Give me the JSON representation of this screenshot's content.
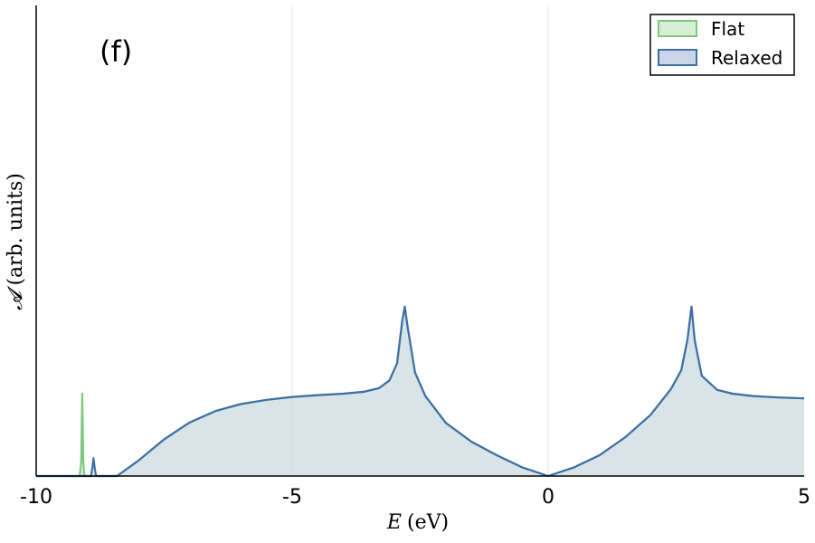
{
  "chart_data": {
    "type": "area",
    "panel_label": "(f)",
    "xlabel_symbol": "E",
    "xlabel_unit": "(eV)",
    "ylabel_symbol": "𝓐",
    "ylabel_unit": "(arb. units)",
    "xlim": [
      -10,
      5
    ],
    "ylim": [
      0,
      1
    ],
    "x_ticks": [
      -10,
      -5,
      0,
      5
    ],
    "x_tick_labels": [
      "-10",
      "-5",
      "0",
      "5"
    ],
    "grid": "vertical lines at x ticks",
    "legend_position": "top-right",
    "series": [
      {
        "name": "Flat",
        "line_color": "#7ec87e",
        "fill_color": "#d7efd7",
        "points": [
          [
            -10,
            0
          ],
          [
            -9.15,
            0
          ],
          [
            -9.12,
            0.03
          ],
          [
            -9.1,
            0.175
          ],
          [
            -9.08,
            0.03
          ],
          [
            -9.06,
            0
          ],
          [
            -8.42,
            0
          ],
          [
            -8.0,
            0.033
          ],
          [
            -7.5,
            0.078
          ],
          [
            -7.0,
            0.114
          ],
          [
            -6.5,
            0.138
          ],
          [
            -6.0,
            0.153
          ],
          [
            -5.5,
            0.162
          ],
          [
            -5.0,
            0.168
          ],
          [
            -4.5,
            0.172
          ],
          [
            -4.0,
            0.175
          ],
          [
            -3.6,
            0.179
          ],
          [
            -3.3,
            0.187
          ],
          [
            -3.1,
            0.203
          ],
          [
            -2.95,
            0.24
          ],
          [
            -2.85,
            0.33
          ],
          [
            -2.8,
            0.36
          ],
          [
            -2.75,
            0.32
          ],
          [
            -2.6,
            0.22
          ],
          [
            -2.4,
            0.17
          ],
          [
            -2.0,
            0.113
          ],
          [
            -1.5,
            0.073
          ],
          [
            -1.0,
            0.044
          ],
          [
            -0.5,
            0.018
          ],
          [
            0,
            0
          ],
          [
            0.5,
            0.018
          ],
          [
            1.0,
            0.044
          ],
          [
            1.5,
            0.082
          ],
          [
            2.0,
            0.13
          ],
          [
            2.4,
            0.185
          ],
          [
            2.6,
            0.225
          ],
          [
            2.72,
            0.29
          ],
          [
            2.8,
            0.36
          ],
          [
            2.86,
            0.29
          ],
          [
            3.0,
            0.213
          ],
          [
            3.3,
            0.183
          ],
          [
            3.6,
            0.175
          ],
          [
            4.0,
            0.17
          ],
          [
            4.5,
            0.167
          ],
          [
            5.0,
            0.165
          ]
        ]
      },
      {
        "name": "Relaxed",
        "line_color": "#3f6fa8",
        "fill_color": "#cad6e7",
        "points": [
          [
            -10,
            0
          ],
          [
            -8.93,
            0
          ],
          [
            -8.9,
            0.02
          ],
          [
            -8.88,
            0.038
          ],
          [
            -8.86,
            0.02
          ],
          [
            -8.83,
            0
          ],
          [
            -8.42,
            0
          ],
          [
            -8.0,
            0.033
          ],
          [
            -7.5,
            0.078
          ],
          [
            -7.0,
            0.114
          ],
          [
            -6.5,
            0.138
          ],
          [
            -6.0,
            0.153
          ],
          [
            -5.5,
            0.162
          ],
          [
            -5.0,
            0.168
          ],
          [
            -4.5,
            0.172
          ],
          [
            -4.0,
            0.175
          ],
          [
            -3.6,
            0.179
          ],
          [
            -3.3,
            0.187
          ],
          [
            -3.1,
            0.203
          ],
          [
            -2.95,
            0.24
          ],
          [
            -2.85,
            0.33
          ],
          [
            -2.8,
            0.36
          ],
          [
            -2.75,
            0.32
          ],
          [
            -2.6,
            0.22
          ],
          [
            -2.4,
            0.17
          ],
          [
            -2.0,
            0.113
          ],
          [
            -1.5,
            0.073
          ],
          [
            -1.0,
            0.044
          ],
          [
            -0.5,
            0.018
          ],
          [
            0,
            0
          ],
          [
            0.5,
            0.018
          ],
          [
            1.0,
            0.044
          ],
          [
            1.5,
            0.082
          ],
          [
            2.0,
            0.13
          ],
          [
            2.4,
            0.185
          ],
          [
            2.6,
            0.225
          ],
          [
            2.72,
            0.29
          ],
          [
            2.8,
            0.36
          ],
          [
            2.86,
            0.29
          ],
          [
            3.0,
            0.213
          ],
          [
            3.3,
            0.183
          ],
          [
            3.6,
            0.175
          ],
          [
            4.0,
            0.17
          ],
          [
            4.5,
            0.167
          ],
          [
            5.0,
            0.165
          ]
        ]
      }
    ]
  }
}
